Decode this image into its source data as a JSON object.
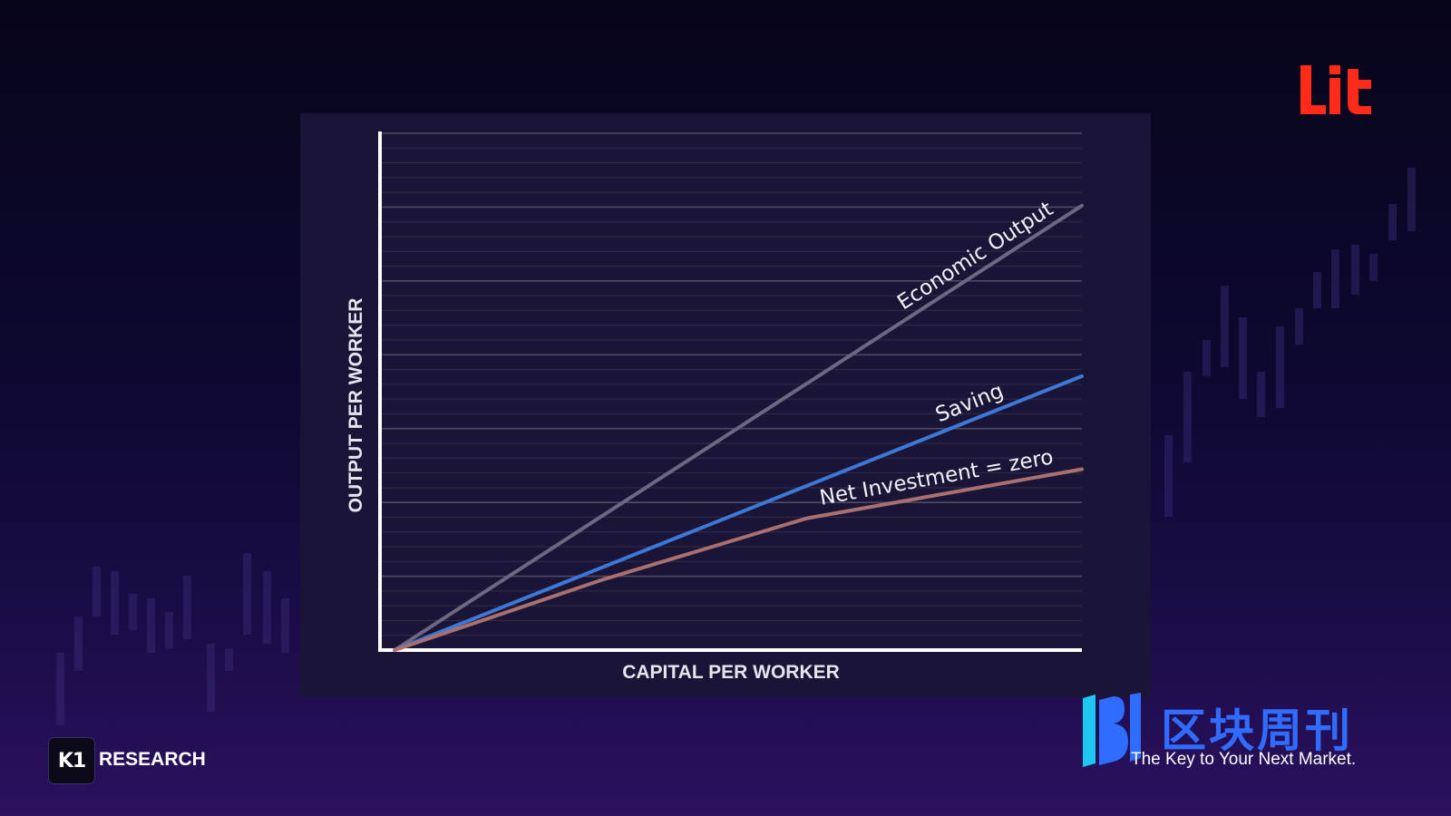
{
  "chart_data": {
    "type": "line",
    "xlabel": "CAPITAL PER WORKER",
    "ylabel": "OUTPUT PER WORKER",
    "xlim": [
      0,
      10
    ],
    "ylim": [
      0,
      10
    ],
    "grid": true,
    "series": [
      {
        "name": "Economic Output",
        "color": "#6e6682",
        "x": [
          0,
          10
        ],
        "y": [
          0,
          8.6
        ]
      },
      {
        "name": "Saving",
        "color": "#3d78d8",
        "x": [
          0,
          10
        ],
        "y": [
          0,
          5.3
        ]
      },
      {
        "name": "Net Investment = zero",
        "color": "#a9706f",
        "x": [
          0,
          3,
          6,
          10
        ],
        "y": [
          0,
          1.35,
          2.55,
          3.5
        ]
      }
    ]
  },
  "branding": {
    "lit_logo": "Lit",
    "lit_color": "#ff2a1a",
    "k1_logo": "K1",
    "research_label": "RESEARCH",
    "qkzk_name": "区块周刊",
    "qkzk_color": "#2f6cff",
    "tagline": "The Key to Your Next Market."
  }
}
